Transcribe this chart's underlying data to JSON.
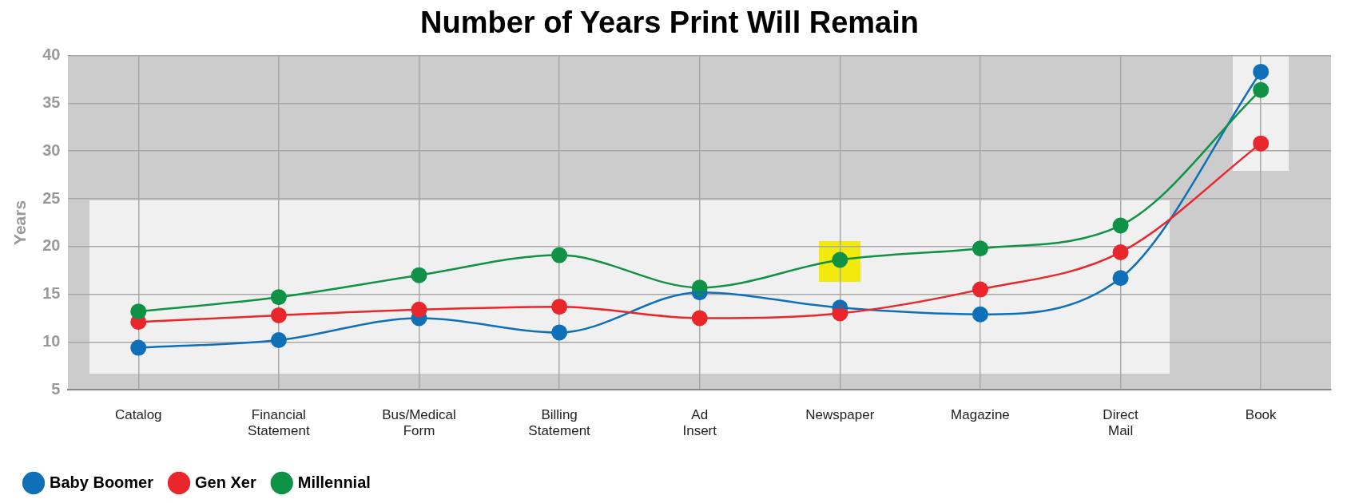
{
  "chart_data": {
    "type": "line",
    "title": "Number of Years Print Will Remain",
    "ylabel": "Years",
    "categories": [
      "Catalog",
      "Financial\nStatement",
      "Bus/Medical\nForm",
      "Billing\nStatement",
      "Ad\nInsert",
      "Newspaper",
      "Magazine",
      "Direct\nMail",
      "Book"
    ],
    "series": [
      {
        "name": "Baby Boomer",
        "color": "#0f70b7",
        "values": [
          9.4,
          10.2,
          12.5,
          11.0,
          15.2,
          13.6,
          12.9,
          16.7,
          38.3
        ]
      },
      {
        "name": "Gen Xer",
        "color": "#e8262b",
        "values": [
          12.1,
          12.8,
          13.4,
          13.7,
          12.5,
          13.0,
          15.5,
          19.4,
          30.8
        ]
      },
      {
        "name": "Millennial",
        "color": "#0f9245",
        "values": [
          13.2,
          14.7,
          17.0,
          19.1,
          15.7,
          18.6,
          19.8,
          22.2,
          36.4
        ]
      }
    ],
    "ylim": [
      5,
      40
    ],
    "yticks": [
      5,
      10,
      15,
      20,
      25,
      30,
      35,
      40
    ],
    "grid": true,
    "legend": "bottom left",
    "marker": "circle",
    "line_style": "solid"
  }
}
